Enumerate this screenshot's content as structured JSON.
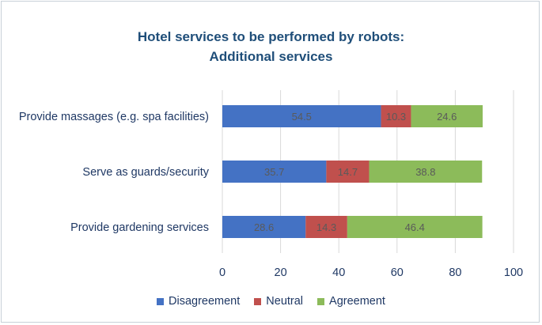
{
  "chart_data": {
    "type": "bar",
    "orientation": "horizontal",
    "stacked": true,
    "title": [
      "Hotel services to be performed by robots:",
      "Additional services"
    ],
    "categories": [
      "Provide massages (e.g. spa facilities)",
      "Serve as guards/security",
      "Provide gardening services"
    ],
    "series": [
      {
        "name": "Disagreement",
        "color": "#4472c4",
        "values": [
          54.5,
          35.7,
          28.6
        ],
        "labels": [
          "54.5",
          "35.7",
          "28.6"
        ]
      },
      {
        "name": "Neutral",
        "color": "#c0504d",
        "values": [
          10.3,
          14.7,
          14.3
        ],
        "labels": [
          "10.3",
          "14.7",
          "14.3"
        ]
      },
      {
        "name": "Agreement",
        "color": "#8cbb5a",
        "values": [
          24.6,
          38.8,
          46.4
        ],
        "labels": [
          "24.6",
          "38.8",
          "46.4"
        ]
      }
    ],
    "xlim": [
      0,
      100
    ],
    "xticks": [
      "0",
      "20",
      "40",
      "60",
      "80",
      "100"
    ],
    "grid": true,
    "legend_position": "bottom"
  }
}
